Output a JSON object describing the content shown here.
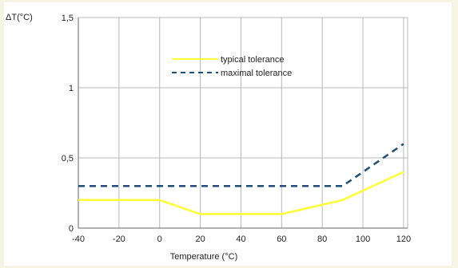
{
  "chart_data": {
    "type": "line",
    "xlabel": "Temperature (°C)",
    "ylabel": "ΔT(°C)",
    "xlim": [
      -40,
      122
    ],
    "ylim": [
      0,
      1.5
    ],
    "x_ticks": [
      -40,
      -20,
      0,
      20,
      40,
      60,
      80,
      100,
      120
    ],
    "x_tick_labels": [
      "-40",
      "-20",
      "0",
      "20",
      "40",
      "60",
      "80",
      "100",
      "120"
    ],
    "y_ticks": [
      0,
      0.5,
      1,
      1.5
    ],
    "y_tick_labels": [
      "0",
      "0,5",
      "1",
      "1,5"
    ],
    "grid": true,
    "legend_position": "top-center",
    "series": [
      {
        "name": "typical tolerance",
        "color": "#ffff33",
        "style": "solid",
        "x": [
          -40,
          0,
          20,
          60,
          90,
          120
        ],
        "y": [
          0.2,
          0.2,
          0.1,
          0.1,
          0.2,
          0.4
        ]
      },
      {
        "name": "maximal tolerance",
        "color": "#1f4e79",
        "style": "dashed",
        "x": [
          -40,
          90,
          120
        ],
        "y": [
          0.3,
          0.3,
          0.6
        ]
      }
    ]
  }
}
